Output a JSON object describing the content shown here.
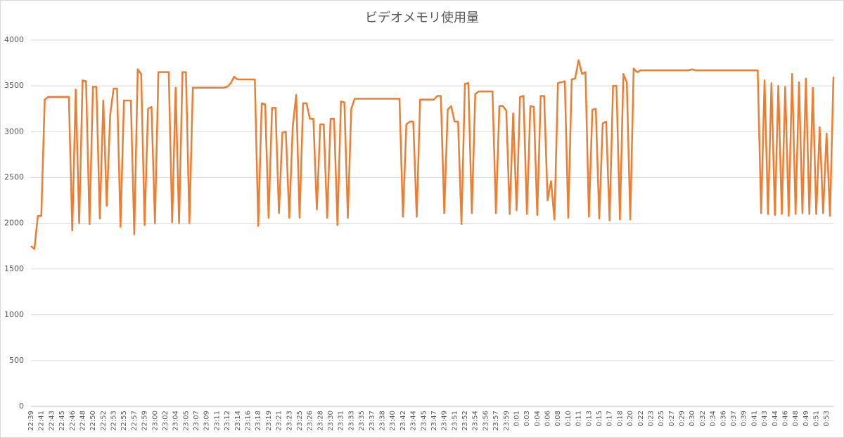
{
  "chart_data": {
    "type": "line",
    "title": "ビデオメモリ使用量",
    "categories": [
      "22:39",
      null,
      null,
      "22:41",
      null,
      null,
      "22:43",
      null,
      null,
      "22:45",
      null,
      null,
      "22:46",
      null,
      null,
      "22:48",
      null,
      null,
      "22:50",
      null,
      null,
      "22:52",
      null,
      null,
      "22:53",
      null,
      null,
      "22:55",
      null,
      null,
      "22:57",
      null,
      null,
      "22:59",
      null,
      null,
      "23:00",
      null,
      null,
      "23:02",
      null,
      null,
      "23:04",
      null,
      null,
      "23:05",
      null,
      null,
      "23:07",
      null,
      null,
      "23:09",
      null,
      null,
      "23:11",
      null,
      null,
      "23:12",
      null,
      null,
      "23:14",
      null,
      null,
      "23:16",
      null,
      null,
      "23:18",
      null,
      null,
      "23:19",
      null,
      null,
      "23:21",
      null,
      null,
      "23:23",
      null,
      null,
      "23:25",
      null,
      null,
      "23:26",
      null,
      null,
      "23:28",
      null,
      null,
      "23:30",
      null,
      null,
      "23:31",
      null,
      null,
      "23:33",
      null,
      null,
      "23:35",
      null,
      null,
      "23:37",
      null,
      null,
      "23:38",
      null,
      null,
      "23:40",
      null,
      null,
      "23:42",
      null,
      null,
      "23:44",
      null,
      null,
      "23:45",
      null,
      null,
      "23:47",
      null,
      null,
      "23:49",
      null,
      null,
      "23:51",
      null,
      null,
      "23:52",
      null,
      null,
      "23:54",
      null,
      null,
      "23:56",
      null,
      null,
      "23:57",
      null,
      null,
      "23:59",
      null,
      null,
      "0:01",
      null,
      null,
      "0:03",
      null,
      null,
      "0:04",
      null,
      null,
      "0:06",
      null,
      null,
      "0:08",
      null,
      null,
      "0:10",
      null,
      null,
      "0:11",
      null,
      null,
      "0:13",
      null,
      null,
      "0:15",
      null,
      null,
      "0:17",
      null,
      null,
      "0:18",
      null,
      null,
      "0:20",
      null,
      null,
      "0:22",
      null,
      null,
      "0:23",
      null,
      null,
      "0:25",
      null,
      null,
      "0:27",
      null,
      null,
      "0:29",
      null,
      null,
      "0:30",
      null,
      null,
      "0:32",
      null,
      null,
      "0:34",
      null,
      null,
      "0:36",
      null,
      null,
      "0:37",
      null,
      null,
      "0:39",
      null,
      null,
      "0:41",
      null,
      null,
      "0:43",
      null,
      null,
      "0:44",
      null,
      null,
      "0:46",
      null,
      null,
      "0:48",
      null,
      null,
      "0:49",
      null,
      null,
      "0:51",
      null,
      null,
      "0:53",
      null,
      null
    ],
    "values": [
      1750,
      1720,
      2080,
      2080,
      3350,
      3380,
      3380,
      3380,
      3380,
      3380,
      3380,
      3380,
      1920,
      3460,
      2000,
      3560,
      3550,
      1990,
      3490,
      3490,
      2050,
      3340,
      2190,
      3180,
      3470,
      3470,
      1960,
      3340,
      3340,
      3340,
      1880,
      3680,
      3630,
      1980,
      3250,
      3270,
      2000,
      3650,
      3650,
      3650,
      3650,
      2010,
      3480,
      2000,
      3650,
      3650,
      2000,
      3480,
      3480,
      3480,
      3480,
      3480,
      3480,
      3480,
      3480,
      3480,
      3480,
      3490,
      3530,
      3600,
      3570,
      3570,
      3570,
      3570,
      3570,
      3570,
      1970,
      3310,
      3300,
      2060,
      3260,
      3260,
      2110,
      2990,
      3000,
      2060,
      3050,
      3400,
      2060,
      3310,
      3310,
      3140,
      3140,
      2150,
      3080,
      3080,
      2060,
      3140,
      3140,
      1980,
      3330,
      3320,
      2060,
      3250,
      3360,
      3360,
      3360,
      3360,
      3360,
      3360,
      3360,
      3360,
      3360,
      3360,
      3360,
      3360,
      3360,
      3360,
      2070,
      3080,
      3110,
      3110,
      2070,
      3350,
      3350,
      3350,
      3350,
      3350,
      3390,
      3390,
      2110,
      3240,
      3280,
      3110,
      3110,
      1990,
      3520,
      3530,
      2110,
      3410,
      3440,
      3440,
      3440,
      3440,
      3440,
      2110,
      3280,
      3280,
      3230,
      2100,
      3200,
      2140,
      3380,
      3390,
      2100,
      3280,
      3270,
      2090,
      3390,
      3390,
      2250,
      2460,
      2040,
      3530,
      3540,
      3550,
      2060,
      3570,
      3580,
      3780,
      3630,
      3650,
      2070,
      3240,
      3250,
      2050,
      3090,
      3110,
      2030,
      3500,
      3500,
      2040,
      3630,
      3540,
      2040,
      3690,
      3650,
      3670,
      3670,
      3670,
      3670,
      3670,
      3670,
      3670,
      3670,
      3670,
      3670,
      3670,
      3670,
      3670,
      3670,
      3670,
      3680,
      3670,
      3670,
      3670,
      3670,
      3670,
      3670,
      3670,
      3670,
      3670,
      3670,
      3670,
      3670,
      3670,
      3670,
      3670,
      3670,
      3670,
      3670,
      3670,
      2110,
      3560,
      2100,
      3530,
      2090,
      3500,
      2100,
      3490,
      2080,
      3630,
      2100,
      3540,
      2110,
      3580,
      2100,
      3480,
      2100,
      3050,
      2110,
      2980,
      2080,
      3600
    ],
    "color": "#ed7d31",
    "ylim": [
      0,
      4000
    ],
    "yticks": [
      0,
      500,
      1000,
      1500,
      2000,
      2500,
      3000,
      3500,
      4000
    ],
    "grid": true
  }
}
